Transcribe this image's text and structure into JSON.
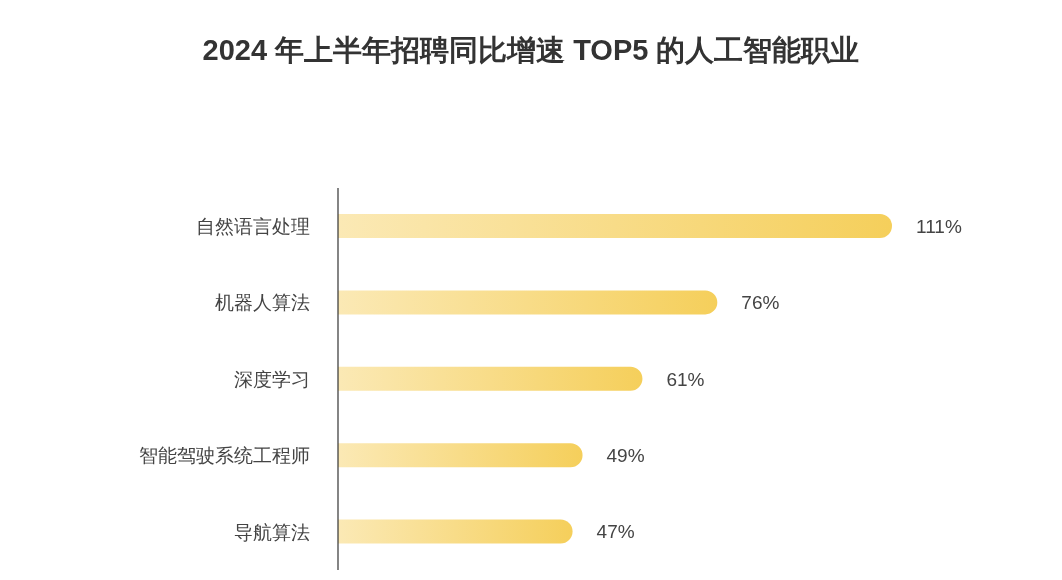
{
  "chart_data": {
    "type": "bar",
    "orientation": "horizontal",
    "title": "2024 年上半年招聘同比增速 TOP5 的人工智能职业",
    "categories": [
      "自然语言处理",
      "机器人算法",
      "深度学习",
      "智能驾驶系统工程师",
      "导航算法"
    ],
    "values": [
      111,
      76,
      61,
      49,
      47
    ],
    "color": "#f5cf5b",
    "value_labels": [
      "111%",
      "76%",
      "61%",
      "49%",
      "47%"
    ]
  }
}
